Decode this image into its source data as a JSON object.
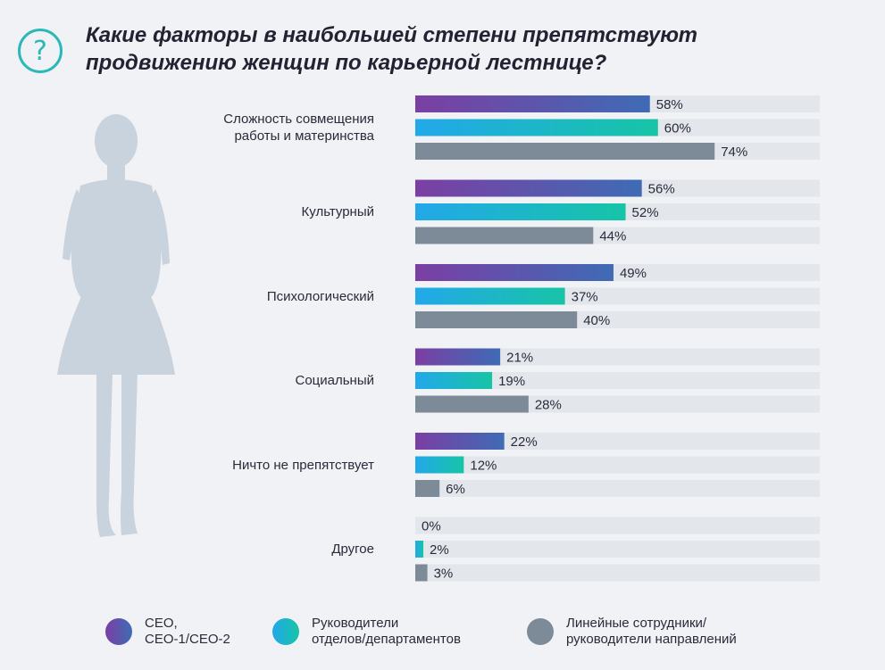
{
  "header": {
    "icon": "question-icon",
    "title_line1": "Какие факторы в наибольшей степени препятствуют",
    "title_line2": "продвижению женщин по карьерной лестнице?"
  },
  "figure": {
    "icon": "woman-silhouette-icon"
  },
  "chart_data": {
    "type": "bar",
    "orientation": "horizontal",
    "xlim": [
      0,
      100
    ],
    "categories": [
      [
        "Сложность совмещения",
        "работы и материнства"
      ],
      [
        "Культурный"
      ],
      [
        "Психологический"
      ],
      [
        "Социальный"
      ],
      [
        "Ничто не препятствует"
      ],
      [
        "Другое"
      ]
    ],
    "series": [
      {
        "name": "CEO, CEO-1/CEO-2",
        "values": [
          58,
          56,
          49,
          21,
          22,
          0
        ],
        "colors": [
          "#7b3fa3",
          "#3f6bb5"
        ]
      },
      {
        "name": "Руководители отделов/департаментов",
        "values": [
          60,
          52,
          37,
          19,
          12,
          2
        ],
        "colors": [
          "#22a8ea",
          "#17c4a6"
        ]
      },
      {
        "name": "Линейные сотрудники/ руководители направлений",
        "values": [
          74,
          44,
          40,
          28,
          6,
          3
        ],
        "colors": [
          "#7d8b99",
          "#7d8b99"
        ]
      }
    ],
    "value_suffix": "%",
    "track_color": "#e3e7ec"
  },
  "legend": [
    {
      "line1": "CEO,",
      "line2": "CEO-1/CEO-2",
      "icon": "purple-dot-icon"
    },
    {
      "line1": "Руководители",
      "line2": "отделов/департаментов",
      "icon": "teal-dot-icon"
    },
    {
      "line1": "Линейные сотрудники/",
      "line2": "руководители направлений",
      "icon": "gray-dot-icon"
    }
  ]
}
